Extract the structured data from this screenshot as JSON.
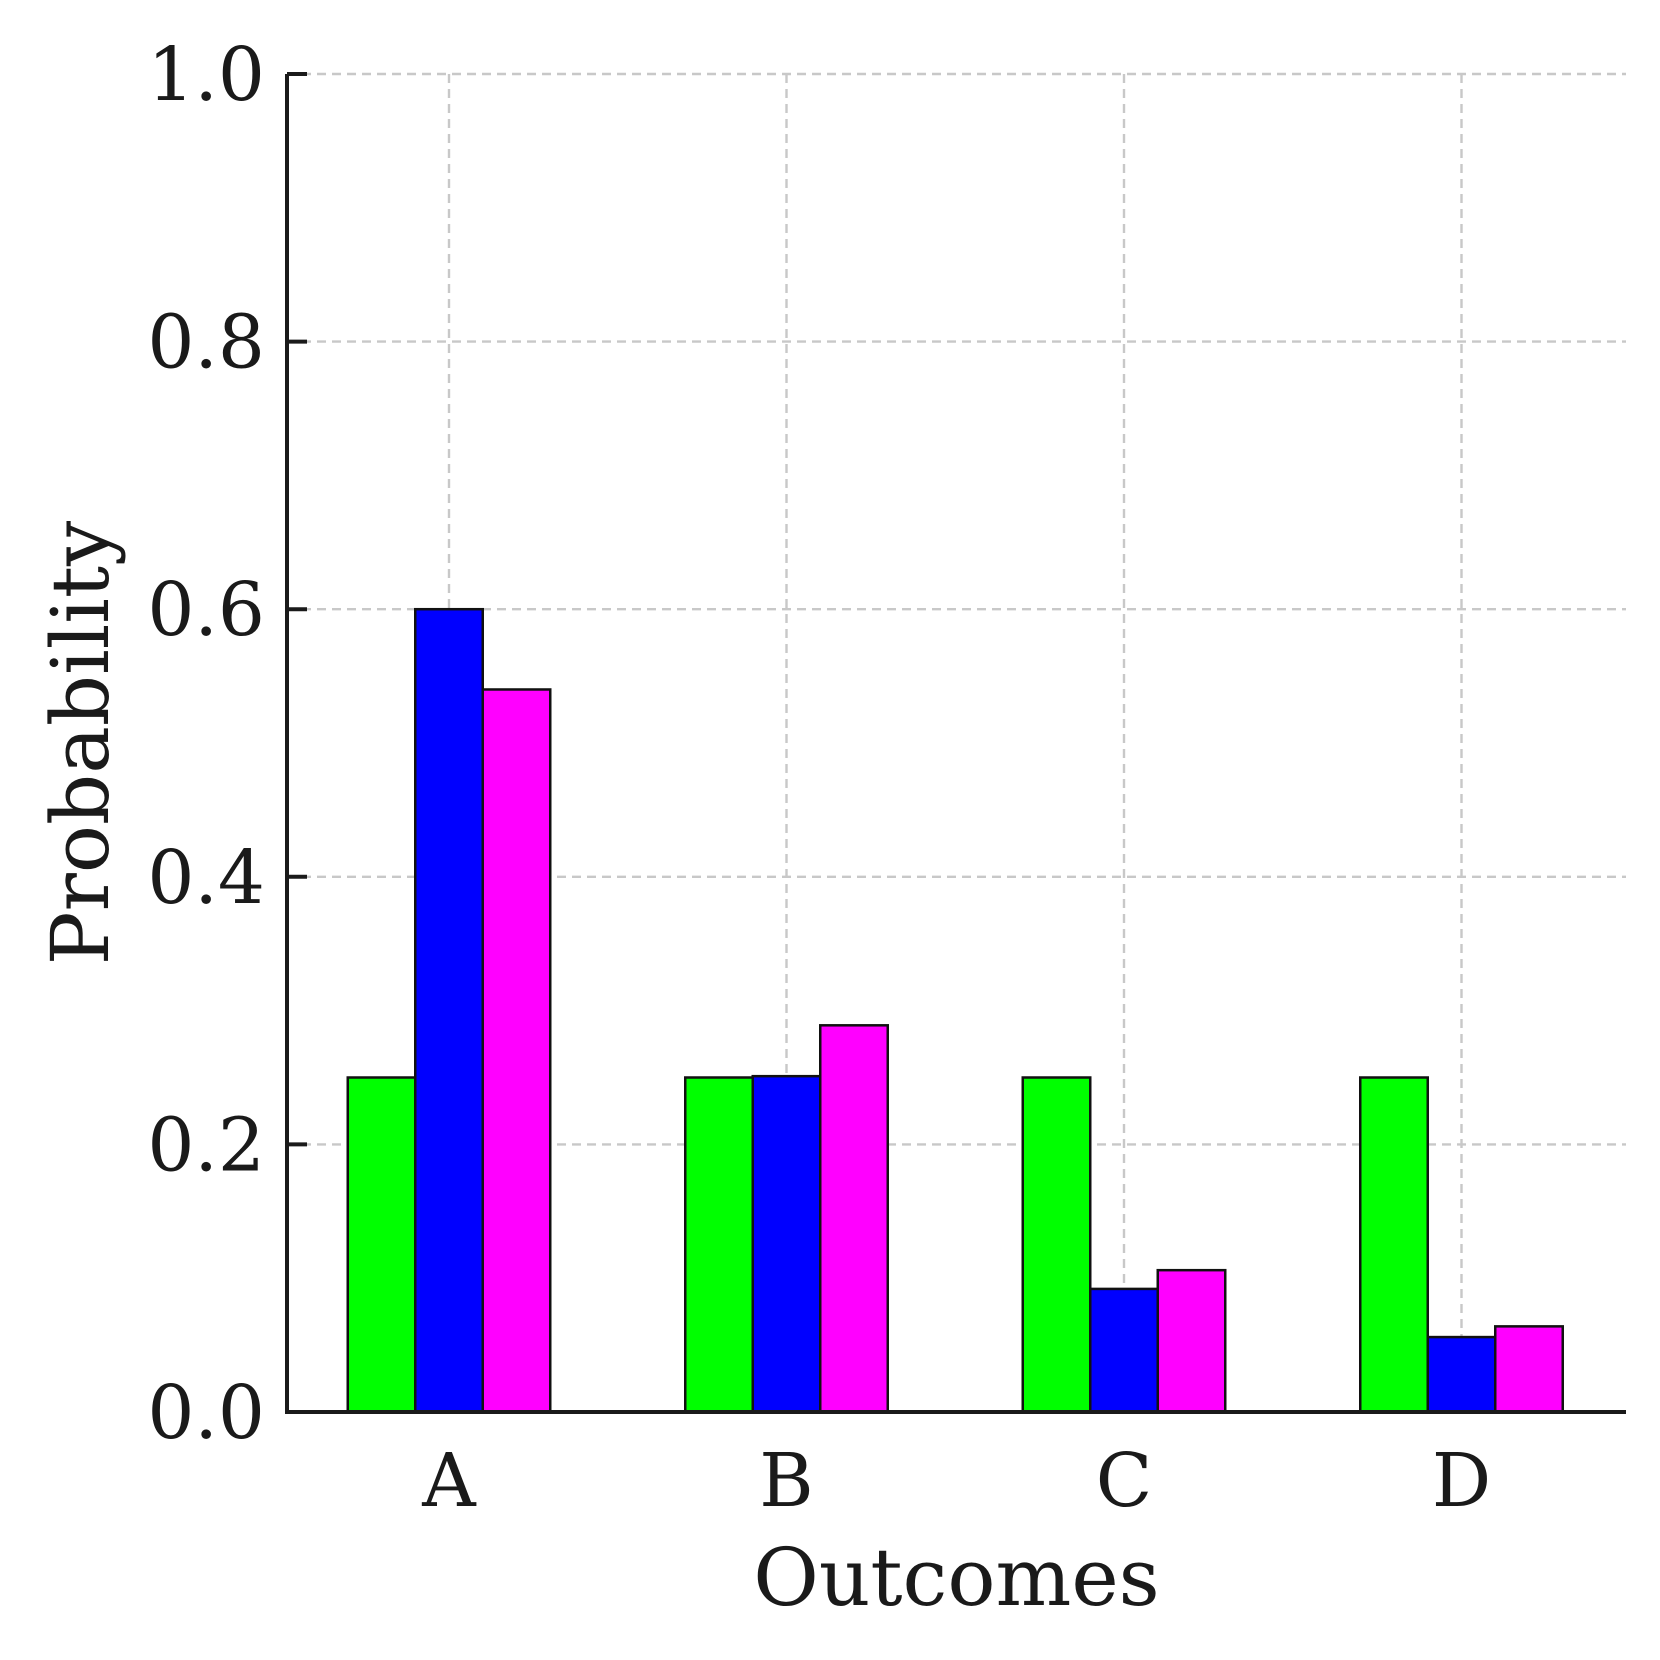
{
  "chart_data": {
    "type": "bar",
    "title": "",
    "xlabel": "Outcomes",
    "ylabel": "Probability",
    "categories": [
      "A",
      "B",
      "C",
      "D"
    ],
    "ylim": [
      0,
      1.0
    ],
    "yticks": [
      "0.0",
      "0.2",
      "0.4",
      "0.6",
      "0.8",
      "1.0"
    ],
    "grid": true,
    "legend": "none",
    "series": [
      {
        "values": [
          0.25,
          0.25,
          0.25,
          0.25
        ],
        "color": "#00ff00"
      },
      {
        "values": [
          0.6,
          0.251,
          0.092,
          0.056
        ],
        "color": "#0000ff"
      },
      {
        "values": [
          0.54,
          0.289,
          0.106,
          0.064
        ],
        "color": "#ff00ff"
      }
    ]
  }
}
